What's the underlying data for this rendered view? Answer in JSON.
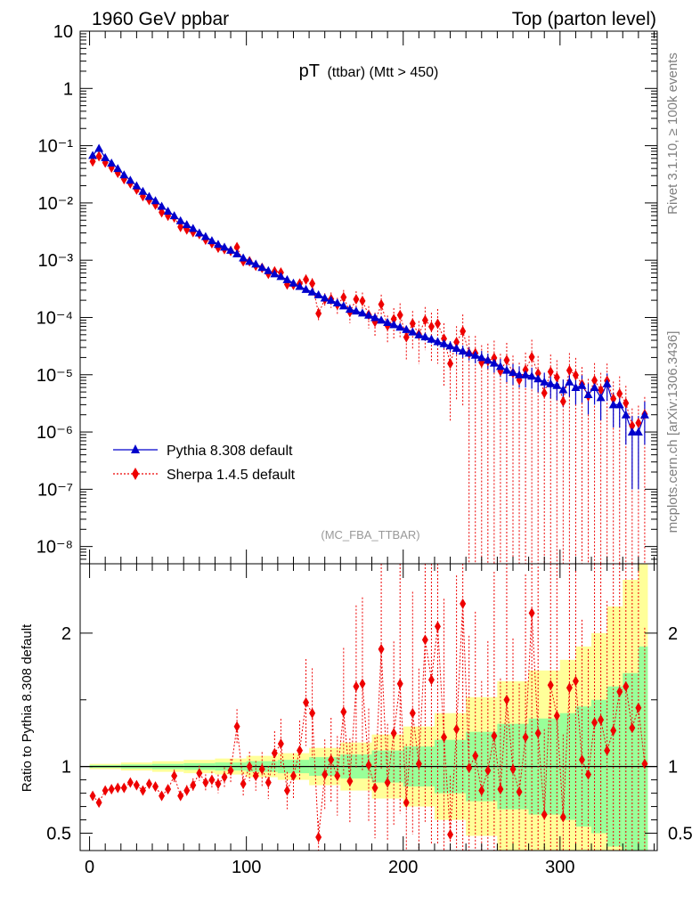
{
  "header": {
    "left": "1960 GeV ppbar",
    "right": "Top (parton level)"
  },
  "side_labels": {
    "rivet": "Rivet 3.1.10, ≥ 100k events",
    "mcplots": "mcplots.cern.ch [arXiv:1306.3436]"
  },
  "colors": {
    "pythia": "#0000cc",
    "sherpa": "#ee0000",
    "band_inner": "#99ff99",
    "band_outer": "#ffff99"
  },
  "chart_data": [
    {
      "type": "scatter",
      "title_main": "pT",
      "title_sub": "(ttbar) (Mtt > 450)",
      "analysis": "(MC_FBA_TTBAR)",
      "xlabel": "",
      "ylabel": "",
      "yscale": "log",
      "xlim": [
        -6,
        362
      ],
      "ylim": [
        5e-09,
        10
      ],
      "y_tick_labels": [
        "10",
        "1",
        "10⁻¹",
        "10⁻²",
        "10⁻³",
        "10⁻⁴",
        "10⁻⁵",
        "10⁻⁶",
        "10⁻⁷",
        "10⁻⁸"
      ],
      "y_tick_values": [
        10,
        1,
        0.1,
        0.01,
        0.001,
        0.0001,
        1e-05,
        1e-06,
        1e-07,
        1e-08
      ],
      "legend": [
        {
          "label": "Pythia 8.308 default",
          "series": "pythia"
        },
        {
          "label": "Sherpa 1.4.5 default",
          "series": "sherpa"
        }
      ],
      "series": [
        {
          "name": "Pythia 8.308 default",
          "marker": "triangle",
          "x": [
            2,
            6,
            10,
            14,
            18,
            22,
            26,
            30,
            34,
            38,
            42,
            46,
            50,
            54,
            58,
            62,
            66,
            70,
            74,
            78,
            82,
            86,
            90,
            94,
            98,
            102,
            106,
            110,
            114,
            118,
            122,
            126,
            130,
            134,
            138,
            142,
            146,
            150,
            154,
            158,
            162,
            166,
            170,
            174,
            178,
            182,
            186,
            190,
            194,
            198,
            202,
            206,
            210,
            214,
            218,
            222,
            226,
            230,
            234,
            238,
            242,
            246,
            250,
            254,
            258,
            262,
            266,
            270,
            274,
            278,
            282,
            286,
            290,
            294,
            298,
            302,
            306,
            310,
            314,
            318,
            322,
            326,
            330,
            334,
            338,
            342,
            346,
            350,
            354
          ],
          "y": [
            0.068,
            0.09,
            0.062,
            0.05,
            0.04,
            0.031,
            0.025,
            0.02,
            0.016,
            0.013,
            0.011,
            0.0088,
            0.0072,
            0.006,
            0.0049,
            0.0042,
            0.0036,
            0.003,
            0.0026,
            0.0022,
            0.0019,
            0.0017,
            0.0015,
            0.0013,
            0.0011,
            0.00096,
            0.00086,
            0.00075,
            0.00066,
            0.00058,
            0.00052,
            0.00046,
            0.0004,
            0.00035,
            0.00031,
            0.00028,
            0.00025,
            0.00022,
            0.0002,
            0.00018,
            0.00016,
            0.00014,
            0.00013,
            0.00012,
            0.00011,
            0.0001,
            9e-05,
            8.2e-05,
            7.5e-05,
            6.8e-05,
            6.2e-05,
            5.6e-05,
            5e-05,
            4.6e-05,
            4.2e-05,
            3.8e-05,
            3.5e-05,
            3.2e-05,
            2.9e-05,
            2.6e-05,
            2.4e-05,
            2.2e-05,
            2e-05,
            1.8e-05,
            1.6e-05,
            1.4e-05,
            1.2e-05,
            1.1e-05,
            1e-05,
            1e-05,
            9.5e-06,
            8.5e-06,
            7.5e-06,
            7e-06,
            6.5e-06,
            5.5e-06,
            7.5e-06,
            6e-06,
            6.5e-06,
            4.5e-06,
            6e-06,
            4e-06,
            7e-06,
            3e-06,
            3e-06,
            2e-06,
            1e-06,
            1e-06,
            2e-06
          ],
          "err_rel": [
            0.01,
            0.01,
            0.01,
            0.01,
            0.01,
            0.01,
            0.01,
            0.01,
            0.01,
            0.01,
            0.01,
            0.01,
            0.01,
            0.01,
            0.01,
            0.01,
            0.01,
            0.01,
            0.01,
            0.01,
            0.02,
            0.02,
            0.02,
            0.02,
            0.02,
            0.02,
            0.02,
            0.02,
            0.03,
            0.03,
            0.03,
            0.03,
            0.03,
            0.04,
            0.04,
            0.04,
            0.05,
            0.05,
            0.05,
            0.06,
            0.06,
            0.06,
            0.07,
            0.07,
            0.08,
            0.08,
            0.09,
            0.1,
            0.1,
            0.11,
            0.12,
            0.13,
            0.14,
            0.15,
            0.16,
            0.17,
            0.18,
            0.2,
            0.22,
            0.24,
            0.26,
            0.28,
            0.3,
            0.3,
            0.32,
            0.35,
            0.38,
            0.4,
            0.4,
            0.4,
            0.4,
            0.42,
            0.45,
            0.45,
            0.45,
            0.5,
            0.45,
            0.5,
            0.5,
            0.55,
            0.5,
            0.6,
            0.5,
            0.6,
            0.6,
            0.7,
            0.9,
            0.9,
            0.7
          ]
        },
        {
          "name": "Sherpa 1.4.5 default",
          "marker": "diamond",
          "x": [
            2,
            6,
            10,
            14,
            18,
            22,
            26,
            30,
            34,
            38,
            42,
            46,
            50,
            54,
            58,
            62,
            66,
            70,
            74,
            78,
            82,
            86,
            90,
            94,
            98,
            102,
            106,
            110,
            114,
            118,
            122,
            126,
            130,
            134,
            138,
            142,
            146,
            150,
            154,
            158,
            162,
            166,
            170,
            174,
            178,
            182,
            186,
            190,
            194,
            198,
            202,
            206,
            210,
            214,
            218,
            222,
            226,
            230,
            234,
            238,
            242,
            246,
            250,
            254,
            258,
            262,
            266,
            270,
            274,
            278,
            282,
            286,
            290,
            294,
            298,
            302,
            306,
            310,
            314,
            318,
            322,
            326,
            330,
            334,
            338,
            342,
            346,
            350,
            354
          ],
          "ratio": [
            0.78,
            0.73,
            0.82,
            0.83,
            0.84,
            0.84,
            0.88,
            0.86,
            0.82,
            0.87,
            0.85,
            0.78,
            0.83,
            0.93,
            0.78,
            0.82,
            0.86,
            0.95,
            0.88,
            0.9,
            0.87,
            0.92,
            0.97,
            1.3,
            0.87,
            1.0,
            0.93,
            0.98,
            0.88,
            1.1,
            1.17,
            0.82,
            0.93,
            1.12,
            1.48,
            1.4,
            0.47,
            0.94,
            1.05,
            0.93,
            1.41,
            0.89,
            1.6,
            1.62,
            1.01,
            0.84,
            1.88,
            0.88,
            1.25,
            1.62,
            0.73,
            1.4,
            1.02,
            1.95,
            1.65,
            2.05,
            1.22,
            0.49,
            1.28,
            2.22,
            0.99,
            1.08,
            0.82,
            0.97,
            1.23,
            0.83,
            1.5,
            0.98,
            0.81,
            1.22,
            2.15,
            1.25,
            0.64,
            1.61,
            1.38,
            0.62,
            1.59,
            1.64,
            1.05,
            0.94,
            1.33,
            1.35,
            1.12,
            1.27,
            1.56,
            1.6,
            1.29,
            1.44,
            1.02
          ],
          "err_rel": [
            0.02,
            0.02,
            0.02,
            0.02,
            0.02,
            0.03,
            0.03,
            0.03,
            0.03,
            0.03,
            0.04,
            0.04,
            0.04,
            0.05,
            0.05,
            0.05,
            0.06,
            0.06,
            0.07,
            0.07,
            0.08,
            0.08,
            0.09,
            0.1,
            0.1,
            0.11,
            0.12,
            0.13,
            0.14,
            0.15,
            0.16,
            0.17,
            0.18,
            0.2,
            0.22,
            0.24,
            0.26,
            0.28,
            0.3,
            0.32,
            0.34,
            0.36,
            0.38,
            0.4,
            0.42,
            0.45,
            0.48,
            0.5,
            0.55,
            0.6,
            0.6,
            0.65,
            0.7,
            0.7,
            0.75,
            0.8,
            0.85,
            0.9,
            0.9,
            0.95,
            1.0,
            1.0,
            1.0,
            1.0,
            1.0,
            1.0,
            1.0,
            1.0,
            1.0,
            1.0,
            1.0,
            1.0,
            1.0,
            1.0,
            1.0,
            1.0,
            1.0,
            1.0,
            1.0,
            1.0,
            1.0,
            1.0,
            1.0,
            1.0,
            1.0,
            1.0,
            1.0,
            1.0,
            1.0
          ]
        }
      ]
    },
    {
      "type": "scatter",
      "ylabel": "Ratio to Pythia 8.308 default",
      "xlabel": "",
      "xlim": [
        -6,
        362
      ],
      "ylim": [
        0.37,
        2.52
      ],
      "x_tick_labels": [
        "0",
        "100",
        "200",
        "300"
      ],
      "x_tick_values": [
        0,
        100,
        200,
        300
      ],
      "y_tick_labels": [
        "0.5",
        "1",
        "2"
      ],
      "y_tick_values": [
        0.5,
        1,
        2
      ],
      "reference_line": 1,
      "band_edges": [
        0,
        20,
        40,
        60,
        80,
        100,
        120,
        140,
        160,
        180,
        200,
        220,
        240,
        260,
        280,
        300,
        310,
        320,
        330,
        340,
        350,
        356
      ],
      "band_inner_rel": [
        0.01,
        0.015,
        0.02,
        0.025,
        0.03,
        0.04,
        0.05,
        0.07,
        0.09,
        0.12,
        0.15,
        0.2,
        0.26,
        0.32,
        0.36,
        0.4,
        0.45,
        0.5,
        0.6,
        0.7,
        0.9
      ],
      "band_outer_rel": [
        0.02,
        0.03,
        0.04,
        0.05,
        0.06,
        0.08,
        0.1,
        0.14,
        0.18,
        0.24,
        0.3,
        0.4,
        0.52,
        0.64,
        0.72,
        0.8,
        0.9,
        1.0,
        1.2,
        1.4,
        1.8
      ]
    }
  ]
}
